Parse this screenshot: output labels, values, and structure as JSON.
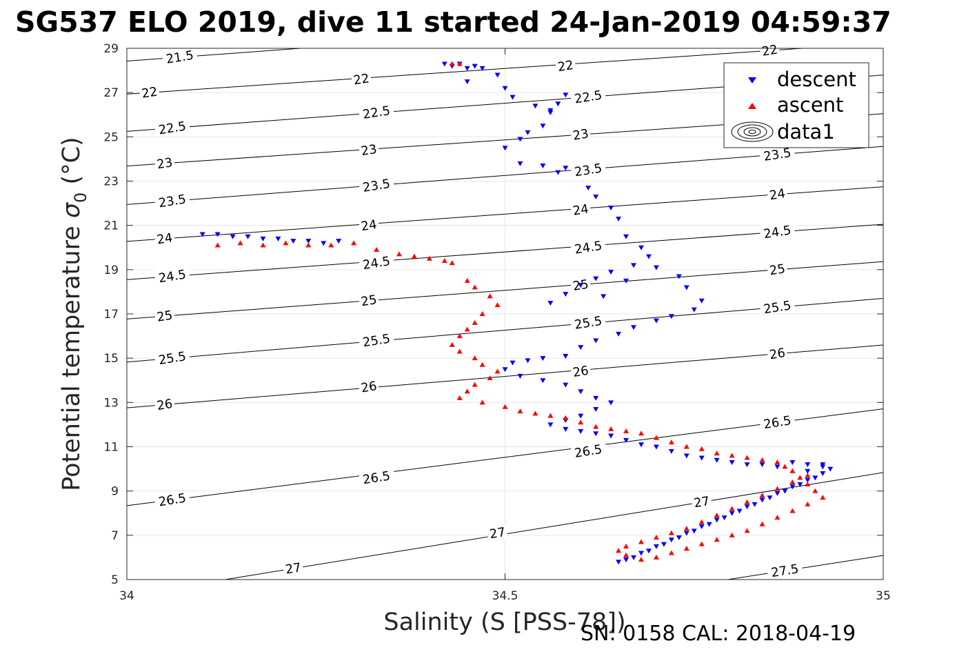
{
  "page": {
    "title": "SG537 ELO 2019, dive 11 started 24-Jan-2019 04:59:37",
    "footer": "SN: 0158  CAL: 2018-04-19"
  },
  "chart_data": {
    "type": "scatter",
    "title": "SG537 ELO 2019, dive 11 started 24-Jan-2019 04:59:37",
    "xlabel": "Salinity (S [PSS-78])",
    "ylabel_main": "Potential temperature ",
    "ylabel_sigma": "σ",
    "ylabel_sub": "0",
    "ylabel_unit": " (°C)",
    "xlim": [
      34,
      35
    ],
    "ylim": [
      5,
      29
    ],
    "xticks": [
      34,
      34.5,
      35
    ],
    "xtick_labels": [
      "34",
      "34.5",
      "35"
    ],
    "yticks": [
      5,
      7,
      9,
      11,
      13,
      15,
      17,
      19,
      21,
      23,
      25,
      27,
      29
    ],
    "ytick_labels": [
      "5",
      "7",
      "9",
      "11",
      "13",
      "15",
      "17",
      "19",
      "21",
      "23",
      "25",
      "27",
      "29"
    ],
    "grid": true,
    "legend_position": "top-right",
    "legend": [
      "descent",
      "ascent",
      "data1"
    ],
    "colors": {
      "descent": "#0000ff",
      "ascent": "#ff0000",
      "contour": "#000000",
      "grid": "#e6e6e6"
    },
    "contours": {
      "levels": [
        21.5,
        22,
        22.5,
        23,
        23.5,
        24,
        24.5,
        25,
        25.5,
        26,
        26.5,
        27,
        27.5
      ],
      "labels": [
        {
          "text": "21.5",
          "x": 34.07,
          "y": 28.6
        },
        {
          "text": "22",
          "x": 34.03,
          "y": 27.0
        },
        {
          "text": "22",
          "x": 34.31,
          "y": 27.6
        },
        {
          "text": "22",
          "x": 34.58,
          "y": 28.2
        },
        {
          "text": "22",
          "x": 34.85,
          "y": 28.9
        },
        {
          "text": "22.5",
          "x": 34.06,
          "y": 25.4
        },
        {
          "text": "22.5",
          "x": 34.33,
          "y": 26.1
        },
        {
          "text": "22.5",
          "x": 34.61,
          "y": 26.8
        },
        {
          "text": "23",
          "x": 34.05,
          "y": 23.8
        },
        {
          "text": "23",
          "x": 34.32,
          "y": 24.4
        },
        {
          "text": "23",
          "x": 34.6,
          "y": 25.1
        },
        {
          "text": "23.5",
          "x": 34.06,
          "y": 22.1
        },
        {
          "text": "23.5",
          "x": 34.33,
          "y": 22.8
        },
        {
          "text": "23.5",
          "x": 34.61,
          "y": 23.5
        },
        {
          "text": "23.5",
          "x": 34.86,
          "y": 24.2
        },
        {
          "text": "24",
          "x": 34.05,
          "y": 20.4
        },
        {
          "text": "24",
          "x": 34.32,
          "y": 21.0
        },
        {
          "text": "24",
          "x": 34.6,
          "y": 21.7
        },
        {
          "text": "24",
          "x": 34.86,
          "y": 22.4
        },
        {
          "text": "24.5",
          "x": 34.06,
          "y": 18.7
        },
        {
          "text": "24.5",
          "x": 34.33,
          "y": 19.3
        },
        {
          "text": "24.5",
          "x": 34.61,
          "y": 20.0
        },
        {
          "text": "24.5",
          "x": 34.86,
          "y": 20.7
        },
        {
          "text": "25",
          "x": 34.05,
          "y": 16.9
        },
        {
          "text": "25",
          "x": 34.32,
          "y": 17.6
        },
        {
          "text": "25",
          "x": 34.6,
          "y": 18.3
        },
        {
          "text": "25",
          "x": 34.86,
          "y": 19.0
        },
        {
          "text": "25.5",
          "x": 34.06,
          "y": 15.0
        },
        {
          "text": "25.5",
          "x": 34.33,
          "y": 15.8
        },
        {
          "text": "25.5",
          "x": 34.61,
          "y": 16.6
        },
        {
          "text": "25.5",
          "x": 34.86,
          "y": 17.3
        },
        {
          "text": "26",
          "x": 34.05,
          "y": 12.9
        },
        {
          "text": "26",
          "x": 34.32,
          "y": 13.7
        },
        {
          "text": "26",
          "x": 34.6,
          "y": 14.4
        },
        {
          "text": "26",
          "x": 34.86,
          "y": 15.2
        },
        {
          "text": "26.5",
          "x": 34.06,
          "y": 8.6
        },
        {
          "text": "26.5",
          "x": 34.33,
          "y": 9.6
        },
        {
          "text": "26.5",
          "x": 34.61,
          "y": 10.8
        },
        {
          "text": "26.5",
          "x": 34.86,
          "y": 12.1
        },
        {
          "text": "27",
          "x": 34.22,
          "y": 5.5
        },
        {
          "text": "27",
          "x": 34.49,
          "y": 7.1
        },
        {
          "text": "27",
          "x": 34.76,
          "y": 8.5
        },
        {
          "text": "27.5",
          "x": 34.87,
          "y": 5.4
        }
      ]
    },
    "series": [
      {
        "name": "descent",
        "marker": "triangle-down",
        "color": "#0000ff",
        "x": [
          34.42,
          34.43,
          34.44,
          34.45,
          34.46,
          34.47,
          34.45,
          34.49,
          34.5,
          34.51,
          34.54,
          34.56,
          34.57,
          34.58,
          34.56,
          34.55,
          34.53,
          34.52,
          34.5,
          34.52,
          34.55,
          34.57,
          34.58,
          34.61,
          34.62,
          34.64,
          34.65,
          34.66,
          34.68,
          34.69,
          34.67,
          34.64,
          34.62,
          34.6,
          34.58,
          34.56,
          34.63,
          34.66,
          34.7,
          34.73,
          34.74,
          34.76,
          34.75,
          34.72,
          34.7,
          34.67,
          34.65,
          34.62,
          34.6,
          34.58,
          34.55,
          34.53,
          34.51,
          34.5,
          34.52,
          34.55,
          34.58,
          34.6,
          34.62,
          34.64,
          34.62,
          34.6,
          34.58,
          34.56,
          34.58,
          34.6,
          34.62,
          34.64,
          34.66,
          34.68,
          34.7,
          34.72,
          34.74,
          34.76,
          34.78,
          34.8,
          34.82,
          34.84,
          34.86,
          34.88,
          34.9,
          34.92,
          34.93,
          34.92,
          34.9,
          34.88,
          34.86,
          34.84,
          34.82,
          34.8,
          34.78,
          34.76,
          34.74,
          34.72,
          34.7,
          34.68,
          34.66,
          34.65,
          34.67,
          34.69,
          34.71,
          34.73,
          34.75,
          34.77,
          34.79,
          34.81,
          34.83,
          34.85,
          34.87,
          34.89,
          34.91,
          34.9,
          34.92,
          34.1,
          34.12,
          34.14,
          34.16,
          34.18,
          34.2,
          34.22,
          34.24,
          34.26,
          34.28
        ],
        "y": [
          28.3,
          28.2,
          28.3,
          28.1,
          28.2,
          28.1,
          27.5,
          27.8,
          27.2,
          26.8,
          26.4,
          26.2,
          26.5,
          26.9,
          26.1,
          25.5,
          25.2,
          24.9,
          24.5,
          23.8,
          23.7,
          23.4,
          23.6,
          22.7,
          22.3,
          21.8,
          21.3,
          20.5,
          20.0,
          19.6,
          19.2,
          18.9,
          18.6,
          18.3,
          17.9,
          17.5,
          17.8,
          18.5,
          19.1,
          18.7,
          18.2,
          17.6,
          17.2,
          16.9,
          16.7,
          16.4,
          16.1,
          15.8,
          15.5,
          15.1,
          15.0,
          14.9,
          14.8,
          14.5,
          14.2,
          14.0,
          13.8,
          13.5,
          13.2,
          13.0,
          12.7,
          12.4,
          12.2,
          12.0,
          11.8,
          11.7,
          11.6,
          11.5,
          11.3,
          11.1,
          11.0,
          10.8,
          10.6,
          10.5,
          10.4,
          10.3,
          10.2,
          10.2,
          10.1,
          10.3,
          10.2,
          10.1,
          10.0,
          9.8,
          9.5,
          9.2,
          8.9,
          8.6,
          8.3,
          8.0,
          7.7,
          7.4,
          7.1,
          6.8,
          6.5,
          6.2,
          5.9,
          5.8,
          6.0,
          6.3,
          6.6,
          6.9,
          7.2,
          7.5,
          7.8,
          8.1,
          8.4,
          8.7,
          9.0,
          9.3,
          9.6,
          9.9,
          10.2,
          20.6,
          20.6,
          20.5,
          20.5,
          20.4,
          20.4,
          20.3,
          20.3,
          20.2,
          20.3
        ]
      },
      {
        "name": "ascent",
        "marker": "triangle-up",
        "color": "#ff0000",
        "x": [
          34.43,
          34.44,
          34.12,
          34.15,
          34.18,
          34.21,
          34.24,
          34.27,
          34.3,
          34.33,
          34.36,
          34.38,
          34.4,
          34.42,
          34.43,
          34.45,
          34.46,
          34.48,
          34.49,
          34.47,
          34.46,
          34.45,
          34.44,
          34.43,
          34.44,
          34.46,
          34.47,
          34.49,
          34.48,
          34.46,
          34.45,
          34.44,
          34.47,
          34.5,
          34.52,
          34.54,
          34.56,
          34.58,
          34.6,
          34.62,
          34.64,
          34.66,
          34.68,
          34.7,
          34.72,
          34.74,
          34.76,
          34.78,
          34.8,
          34.82,
          34.84,
          34.86,
          34.87,
          34.88,
          34.89,
          34.9,
          34.91,
          34.92,
          34.9,
          34.88,
          34.86,
          34.84,
          34.82,
          34.8,
          34.78,
          34.76,
          34.74,
          34.72,
          34.7,
          34.68,
          34.66,
          34.65,
          34.66,
          34.68,
          34.7,
          34.72,
          34.74,
          34.76,
          34.78,
          34.8,
          34.82,
          34.84,
          34.86,
          34.88,
          34.9
        ],
        "y": [
          28.3,
          28.3,
          20.1,
          20.2,
          20.1,
          20.2,
          20.1,
          20.1,
          20.2,
          19.9,
          19.7,
          19.6,
          19.5,
          19.4,
          19.3,
          18.5,
          18.2,
          17.8,
          17.4,
          17.0,
          16.6,
          16.3,
          16.0,
          15.6,
          15.3,
          15.0,
          14.7,
          14.4,
          14.1,
          13.8,
          13.5,
          13.2,
          13.0,
          12.8,
          12.6,
          12.5,
          12.4,
          12.3,
          12.1,
          11.9,
          11.8,
          11.7,
          11.6,
          11.4,
          11.2,
          11.0,
          10.9,
          10.7,
          10.6,
          10.5,
          10.4,
          10.3,
          10.1,
          9.9,
          9.6,
          9.3,
          9.0,
          8.7,
          8.4,
          8.1,
          7.8,
          7.5,
          7.2,
          7.0,
          6.8,
          6.6,
          6.4,
          6.2,
          6.0,
          5.9,
          6.1,
          6.3,
          6.5,
          6.7,
          6.9,
          7.1,
          7.3,
          7.6,
          7.9,
          8.2,
          8.5,
          8.8,
          9.1,
          9.4,
          9.7
        ]
      }
    ]
  }
}
